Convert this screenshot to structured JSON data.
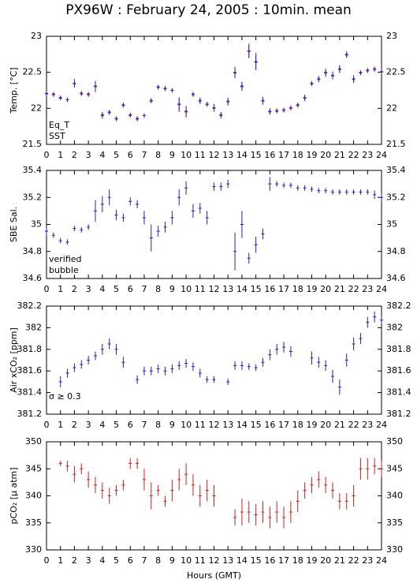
{
  "chart_data": [
    {
      "type": "errorbar",
      "title": "PX96W : February 24, 2005 : 10min. mean",
      "ylabel": "Temp. [°C]",
      "xlim": [
        0,
        24
      ],
      "xticks": [
        0,
        1,
        2,
        3,
        4,
        5,
        6,
        7,
        8,
        9,
        10,
        11,
        12,
        13,
        14,
        15,
        16,
        17,
        18,
        19,
        20,
        21,
        22,
        23,
        24
      ],
      "ylim": [
        21.5,
        23
      ],
      "yticks": [
        21.5,
        22,
        22.5,
        23
      ],
      "x": [
        0,
        0.5,
        1,
        1.5,
        2,
        2.5,
        3,
        3.5,
        4,
        4.5,
        5,
        5.5,
        6,
        6.5,
        7,
        7.5,
        8,
        8.5,
        9,
        9.5,
        10,
        10.5,
        11,
        11.5,
        12,
        12.5,
        13,
        13.5,
        14,
        14.5,
        15,
        15.5,
        16,
        16.5,
        17,
        17.5,
        18,
        18.5,
        19,
        19.5,
        20,
        20.5,
        21,
        21.5,
        22,
        22.5,
        23,
        23.5,
        24
      ],
      "series": [
        {
          "name": "Eq_T",
          "color": "#cc2222",
          "values": [
            22.2,
            22.2,
            22.15,
            22.12,
            22.35,
            22.2,
            22.2,
            22.3,
            21.9,
            21.95,
            21.85,
            22.05,
            21.9,
            21.85,
            21.9,
            22.1,
            22.3,
            22.28,
            22.25,
            22.05,
            21.95,
            22.2,
            22.1,
            22.05,
            22.0,
            21.9,
            22.1,
            22.5,
            22.3,
            22.8,
            22.65,
            22.1,
            21.95,
            21.97,
            21.97,
            22.0,
            22.05,
            22.15,
            22.35,
            22.4,
            22.5,
            22.45,
            22.55,
            22.75,
            22.4,
            22.5,
            22.52,
            22.55,
            22.5
          ],
          "errors": [
            0.03,
            0.03,
            0.03,
            0.03,
            0.06,
            0.03,
            0.03,
            0.08,
            0.04,
            0.03,
            0.03,
            0.03,
            0.03,
            0.03,
            0.03,
            0.03,
            0.03,
            0.03,
            0.03,
            0.1,
            0.08,
            0.03,
            0.04,
            0.03,
            0.05,
            0.04,
            0.05,
            0.08,
            0.06,
            0.1,
            0.12,
            0.05,
            0.04,
            0.03,
            0.03,
            0.03,
            0.03,
            0.04,
            0.03,
            0.04,
            0.05,
            0.05,
            0.05,
            0.04,
            0.05,
            0.03,
            0.03,
            0.03,
            0.03
          ]
        },
        {
          "name": "SST",
          "color": "#2222cc",
          "values": [
            22.21,
            22.19,
            22.14,
            22.12,
            22.34,
            22.21,
            22.19,
            22.31,
            21.91,
            21.94,
            21.86,
            22.04,
            21.91,
            21.86,
            21.9,
            22.11,
            22.29,
            22.27,
            22.25,
            22.06,
            21.96,
            22.19,
            22.11,
            22.06,
            22.01,
            21.91,
            22.09,
            22.49,
            22.31,
            22.79,
            22.64,
            22.11,
            21.96,
            21.96,
            21.98,
            22.01,
            22.04,
            22.14,
            22.34,
            22.41,
            22.49,
            22.46,
            22.54,
            22.74,
            22.41,
            22.49,
            22.53,
            22.54,
            22.51
          ],
          "errors": [
            0.03,
            0.03,
            0.03,
            0.03,
            0.05,
            0.03,
            0.03,
            0.07,
            0.04,
            0.03,
            0.03,
            0.03,
            0.03,
            0.03,
            0.03,
            0.03,
            0.03,
            0.03,
            0.03,
            0.09,
            0.07,
            0.03,
            0.04,
            0.03,
            0.05,
            0.04,
            0.05,
            0.07,
            0.06,
            0.09,
            0.1,
            0.05,
            0.04,
            0.03,
            0.03,
            0.03,
            0.03,
            0.04,
            0.03,
            0.04,
            0.05,
            0.05,
            0.05,
            0.04,
            0.05,
            0.03,
            0.03,
            0.03,
            0.03
          ]
        }
      ]
    },
    {
      "type": "errorbar",
      "ylabel": "SBE Sal.",
      "xlim": [
        0,
        24
      ],
      "xticks": [
        0,
        1,
        2,
        3,
        4,
        5,
        6,
        7,
        8,
        9,
        10,
        11,
        12,
        13,
        14,
        15,
        16,
        17,
        18,
        19,
        20,
        21,
        22,
        23,
        24
      ],
      "ylim": [
        34.6,
        35.4
      ],
      "yticks": [
        34.6,
        34.8,
        35,
        35.2,
        35.4
      ],
      "x": [
        0,
        0.5,
        1,
        1.5,
        2,
        2.5,
        3,
        3.5,
        4,
        4.5,
        5,
        5.5,
        6,
        6.5,
        7,
        7.5,
        8,
        8.5,
        9,
        9.5,
        10,
        10.5,
        11,
        11.5,
        12,
        12.5,
        13,
        13.5,
        14,
        14.5,
        15,
        15.5,
        16,
        16.5,
        17,
        17.5,
        18,
        18.5,
        19,
        19.5,
        20,
        20.5,
        21,
        21.5,
        22,
        22.5,
        23,
        23.5,
        24
      ],
      "series": [
        {
          "name": "verified",
          "color": "#2222bb",
          "values": [
            34.95,
            34.92,
            34.88,
            34.87,
            34.97,
            34.96,
            34.98,
            35.1,
            35.15,
            35.2,
            35.07,
            35.05,
            35.17,
            35.15,
            35.05,
            34.9,
            34.95,
            34.98,
            35.05,
            35.2,
            35.27,
            35.1,
            35.12,
            35.05,
            35.28,
            35.28,
            35.3,
            34.8,
            35.0,
            34.75,
            34.85,
            34.93,
            35.3,
            35.3,
            35.29,
            35.29,
            35.27,
            35.27,
            35.26,
            35.25,
            35.25,
            35.24,
            35.24,
            35.24,
            35.24,
            35.24,
            35.24,
            35.22,
            35.2
          ],
          "errors": [
            0.03,
            0.02,
            0.02,
            0.02,
            0.02,
            0.02,
            0.02,
            0.08,
            0.06,
            0.06,
            0.04,
            0.03,
            0.03,
            0.03,
            0.05,
            0.1,
            0.04,
            0.04,
            0.05,
            0.06,
            0.05,
            0.05,
            0.04,
            0.05,
            0.03,
            0.03,
            0.03,
            0.14,
            0.1,
            0.04,
            0.06,
            0.04,
            0.05,
            0.02,
            0.02,
            0.02,
            0.02,
            0.02,
            0.02,
            0.02,
            0.02,
            0.02,
            0.02,
            0.02,
            0.02,
            0.02,
            0.02,
            0.03,
            0.03
          ]
        },
        {
          "name": "bubble",
          "color": "#cc22cc",
          "values": [
            null,
            null,
            null,
            null,
            null,
            null,
            null,
            null,
            null,
            null,
            null,
            null,
            null,
            null,
            null,
            null,
            null,
            null,
            null,
            null,
            null,
            null,
            null,
            null,
            null,
            null,
            null,
            null,
            null,
            null,
            null,
            null,
            null,
            null,
            null,
            null,
            null,
            null,
            null,
            null,
            null,
            null,
            null,
            null,
            null,
            null,
            null,
            null,
            null
          ],
          "errors": [
            null,
            null,
            null,
            null,
            null,
            null,
            null,
            null,
            null,
            null,
            null,
            null,
            null,
            null,
            null,
            null,
            null,
            null,
            null,
            null,
            null,
            null,
            null,
            null,
            null,
            null,
            null,
            null,
            null,
            null,
            null,
            null,
            null,
            null,
            null,
            null,
            null,
            null,
            null,
            null,
            null,
            null,
            null,
            null,
            null,
            null,
            null,
            null,
            null
          ]
        }
      ]
    },
    {
      "type": "errorbar",
      "ylabel": "Air xCO₂ [ppm]",
      "annotation": "σ ≥ 0.3",
      "annotation_color": "#cc22cc",
      "xlim": [
        0,
        24
      ],
      "xticks": [
        0,
        1,
        2,
        3,
        4,
        5,
        6,
        7,
        8,
        9,
        10,
        11,
        12,
        13,
        14,
        15,
        16,
        17,
        18,
        19,
        20,
        21,
        22,
        23,
        24
      ],
      "ylim": [
        381.2,
        382.2
      ],
      "yticks": [
        381.2,
        381.4,
        381.6,
        381.8,
        382,
        382.2
      ],
      "x": [
        0,
        0.5,
        1,
        1.5,
        2,
        2.5,
        3,
        3.5,
        4,
        4.5,
        5,
        5.5,
        6,
        6.5,
        7,
        7.5,
        8,
        8.5,
        9,
        9.5,
        10,
        10.5,
        11,
        11.5,
        12,
        12.5,
        13,
        13.5,
        14,
        14.5,
        15,
        15.5,
        16,
        16.5,
        17,
        17.5,
        18,
        18.5,
        19,
        19.5,
        20,
        20.5,
        21,
        21.5,
        22,
        22.5,
        23,
        23.5,
        24
      ],
      "series": [
        {
          "color": "#2222bb",
          "values": [
            null,
            null,
            381.5,
            381.58,
            381.63,
            381.66,
            381.7,
            381.74,
            381.8,
            381.85,
            381.8,
            381.68,
            null,
            381.52,
            381.6,
            381.6,
            381.62,
            381.6,
            381.62,
            381.65,
            381.67,
            381.64,
            381.58,
            381.52,
            381.52,
            null,
            381.5,
            381.65,
            381.65,
            381.64,
            381.63,
            381.68,
            381.75,
            381.8,
            381.82,
            381.78,
            null,
            null,
            381.72,
            381.68,
            381.65,
            381.55,
            381.45,
            381.7,
            381.85,
            381.9,
            382.05,
            382.1,
            382.07
          ],
          "errors": [
            null,
            null,
            0.05,
            0.04,
            0.04,
            0.04,
            0.04,
            0.04,
            0.05,
            0.05,
            0.05,
            0.05,
            null,
            0.04,
            0.04,
            0.04,
            0.04,
            0.04,
            0.04,
            0.04,
            0.04,
            0.04,
            0.04,
            0.03,
            0.03,
            null,
            0.03,
            0.04,
            0.04,
            0.03,
            0.03,
            0.04,
            0.05,
            0.05,
            0.05,
            0.05,
            null,
            null,
            0.06,
            0.05,
            0.05,
            0.06,
            0.07,
            0.06,
            0.06,
            0.05,
            0.05,
            0.05,
            0.04
          ]
        }
      ]
    },
    {
      "type": "errorbar",
      "ylabel": "pCO₂ [μ atm]",
      "xlabel": "Hours (GMT)",
      "xlim": [
        0,
        24
      ],
      "xticks": [
        0,
        1,
        2,
        3,
        4,
        5,
        6,
        7,
        8,
        9,
        10,
        11,
        12,
        13,
        14,
        15,
        16,
        17,
        18,
        19,
        20,
        21,
        22,
        23,
        24
      ],
      "ylim": [
        330,
        350
      ],
      "yticks": [
        330,
        335,
        340,
        345,
        350
      ],
      "x": [
        0,
        0.5,
        1,
        1.5,
        2,
        2.5,
        3,
        3.5,
        4,
        4.5,
        5,
        5.5,
        6,
        6.5,
        7,
        7.5,
        8,
        8.5,
        9,
        9.5,
        10,
        10.5,
        11,
        11.5,
        12,
        12.5,
        13,
        13.5,
        14,
        14.5,
        15,
        15.5,
        16,
        16.5,
        17,
        17.5,
        18,
        18.5,
        19,
        19.5,
        20,
        20.5,
        21,
        21.5,
        22,
        22.5,
        23,
        23.5,
        24
      ],
      "series": [
        {
          "color": "#cc2222",
          "values": [
            null,
            null,
            346,
            345.5,
            344,
            345,
            343,
            342,
            341,
            340,
            341,
            342,
            346,
            346,
            343,
            340,
            341,
            339,
            341,
            343,
            344,
            342,
            340,
            341,
            340,
            null,
            null,
            336,
            337,
            337,
            336.5,
            337,
            336,
            337,
            336,
            337,
            339,
            341,
            342,
            343,
            342,
            341,
            339,
            339,
            340,
            345,
            345,
            345.5,
            345
          ],
          "errors": [
            null,
            null,
            0.5,
            1,
            1.5,
            1,
            1.5,
            1.5,
            1.5,
            1.5,
            1,
            1,
            1,
            1,
            2,
            2.5,
            1,
            1,
            2,
            2,
            2,
            2,
            2,
            2,
            2,
            null,
            null,
            1.5,
            2.5,
            2,
            2,
            2,
            2,
            2,
            2,
            2,
            2,
            1.5,
            1.5,
            1.5,
            1.5,
            1.5,
            1.5,
            1.5,
            2,
            2,
            2,
            1.5,
            1.5
          ]
        }
      ]
    }
  ]
}
